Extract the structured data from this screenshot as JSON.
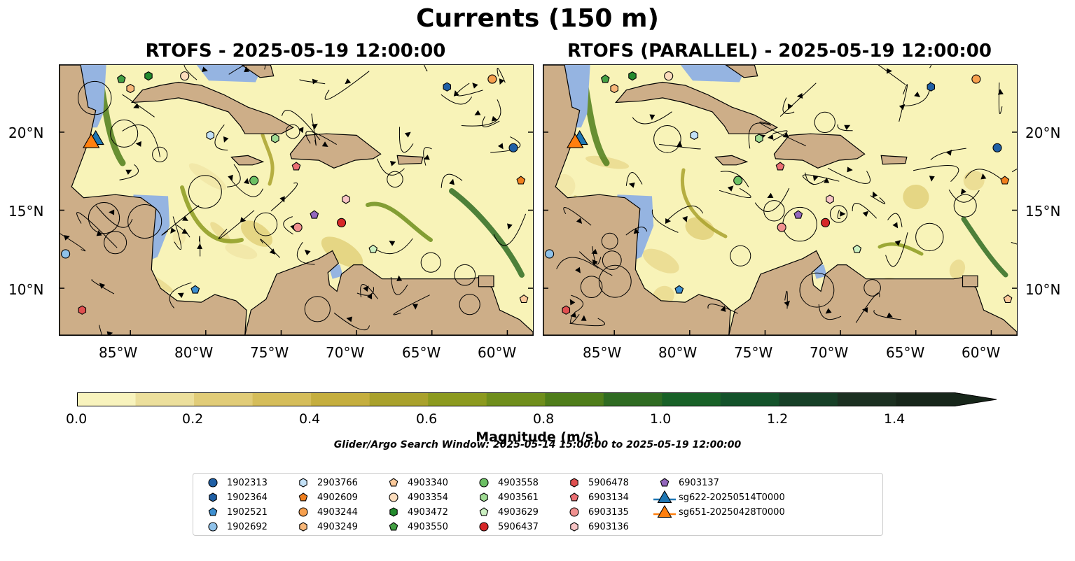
{
  "figure": {
    "title": "Currents (150 m)",
    "panels": [
      {
        "title": "RTOFS - 2025-05-19 12:00:00"
      },
      {
        "title": "RTOFS (PARALLEL) - 2025-05-19 12:00:00"
      }
    ],
    "lon_ticks": [
      "85°W",
      "80°W",
      "75°W",
      "70°W",
      "65°W",
      "60°W"
    ],
    "lat_ticks": [
      "20°N",
      "15°N",
      "10°N"
    ],
    "extent": {
      "lon": [
        -89.7,
        -58.3
      ],
      "lat": [
        7.0,
        24.3
      ]
    },
    "colors": {
      "land": "#cdae88",
      "shallow_water": "#95b4e1",
      "slow_current": "#f8f3b8",
      "fast_current": "#1e3a12"
    }
  },
  "colorbar": {
    "label": "Magnitude (m/s)",
    "ticks": [
      "0.0",
      "0.2",
      "0.4",
      "0.6",
      "0.8",
      "1.0",
      "1.2",
      "1.4"
    ],
    "range": [
      0.0,
      1.5
    ],
    "extend": "max",
    "colors": [
      "#f8f3bd",
      "#ecdf9c",
      "#e1cc78",
      "#d5bd5a",
      "#c5ae3e",
      "#a9a12c",
      "#8c9a1f",
      "#6f8e1c",
      "#4f7d1a",
      "#2f6b22",
      "#186127",
      "#13522a",
      "#174027",
      "#1c3021",
      "#17261a"
    ]
  },
  "search_window": "Glider/Argo Search Window: 2025-05-14 15:00:00 to 2025-05-19 12:00:00",
  "legend": [
    {
      "label": "1902313",
      "marker": "circle",
      "color": "#1f5fa5"
    },
    {
      "label": "1902364",
      "marker": "hexagon",
      "color": "#1f5fa5"
    },
    {
      "label": "1902521",
      "marker": "pentagon",
      "color": "#3d8fd0"
    },
    {
      "label": "1902692",
      "marker": "circle",
      "color": "#8fc2ea"
    },
    {
      "label": "2903766",
      "marker": "hexagon",
      "color": "#c3e1f7"
    },
    {
      "label": "4902609",
      "marker": "pentagon",
      "color": "#f07f1e"
    },
    {
      "label": "4903244",
      "marker": "circle",
      "color": "#f7a04e"
    },
    {
      "label": "4903249",
      "marker": "hexagon",
      "color": "#f8b779"
    },
    {
      "label": "4903340",
      "marker": "pentagon",
      "color": "#fbc99a"
    },
    {
      "label": "4903354",
      "marker": "circle",
      "color": "#fcdcbc"
    },
    {
      "label": "4903472",
      "marker": "hexagon",
      "color": "#238b2d"
    },
    {
      "label": "4903550",
      "marker": "pentagon",
      "color": "#43a043"
    },
    {
      "label": "4903558",
      "marker": "circle",
      "color": "#6cc064"
    },
    {
      "label": "4903561",
      "marker": "hexagon",
      "color": "#9fdb93"
    },
    {
      "label": "4903629",
      "marker": "pentagon",
      "color": "#cbf0c1"
    },
    {
      "label": "5906437",
      "marker": "circle",
      "color": "#d62728"
    },
    {
      "label": "5906478",
      "marker": "hexagon",
      "color": "#e05050"
    },
    {
      "label": "6903134",
      "marker": "pentagon",
      "color": "#eb6f73"
    },
    {
      "label": "6903135",
      "marker": "circle",
      "color": "#f0908f"
    },
    {
      "label": "6903136",
      "marker": "hexagon",
      "color": "#f8c4c5"
    },
    {
      "label": "6903137",
      "marker": "pentagon",
      "color": "#9467bd"
    },
    {
      "label": "sg622-20250514T0000",
      "marker": "triangle",
      "color": "#1f77b4"
    },
    {
      "label": "sg651-20250428T0000",
      "marker": "triangle",
      "color": "#ff7f0e"
    }
  ],
  "floats_right_lon_lat": [
    {
      "id": "1902313",
      "pos": [
        -59.6,
        19.0
      ]
    },
    {
      "id": "1902364",
      "pos": [
        -64.0,
        22.9
      ]
    },
    {
      "id": "1902521",
      "pos": [
        -80.7,
        9.9
      ]
    },
    {
      "id": "1902692",
      "pos": [
        -89.3,
        12.2
      ]
    },
    {
      "id": "2903766",
      "pos": [
        -79.7,
        19.8
      ]
    },
    {
      "id": "4902609",
      "pos": [
        -59.1,
        16.9
      ]
    },
    {
      "id": "4903244",
      "pos": [
        -61.0,
        23.4
      ]
    },
    {
      "id": "4903249",
      "pos": [
        -85.0,
        22.8
      ]
    },
    {
      "id": "4903340",
      "pos": [
        -58.9,
        9.3
      ]
    },
    {
      "id": "4903354",
      "pos": [
        -81.4,
        23.6
      ]
    },
    {
      "id": "4903472",
      "pos": [
        -83.8,
        23.6
      ]
    },
    {
      "id": "4903550",
      "pos": [
        -85.6,
        23.4
      ]
    },
    {
      "id": "4903558",
      "pos": [
        -76.8,
        16.9
      ]
    },
    {
      "id": "4903561",
      "pos": [
        -75.4,
        19.6
      ]
    },
    {
      "id": "4903629",
      "pos": [
        -68.9,
        12.5
      ]
    },
    {
      "id": "5906437",
      "pos": [
        -71.0,
        14.2
      ]
    },
    {
      "id": "5906478",
      "pos": [
        -88.2,
        8.6
      ]
    },
    {
      "id": "6903134",
      "pos": [
        -74.0,
        17.8
      ]
    },
    {
      "id": "6903135",
      "pos": [
        -73.9,
        13.9
      ]
    },
    {
      "id": "6903136",
      "pos": [
        -70.7,
        15.7
      ]
    },
    {
      "id": "6903137",
      "pos": [
        -72.8,
        14.7
      ]
    },
    {
      "id": "sg622-20250514T0000",
      "pos": [
        -87.3,
        19.5
      ]
    },
    {
      "id": "sg651-20250428T0000",
      "pos": [
        -87.6,
        19.3
      ]
    }
  ],
  "floats_left_lon_lat": [
    {
      "id": "1902313",
      "pos": [
        -59.6,
        19.0
      ]
    },
    {
      "id": "1902364",
      "pos": [
        -64.0,
        22.9
      ]
    },
    {
      "id": "1902521",
      "pos": [
        -80.7,
        9.9
      ]
    },
    {
      "id": "1902692",
      "pos": [
        -89.3,
        12.2
      ]
    },
    {
      "id": "2903766",
      "pos": [
        -79.7,
        19.8
      ]
    },
    {
      "id": "4902609",
      "pos": [
        -59.1,
        16.9
      ]
    },
    {
      "id": "4903244",
      "pos": [
        -61.0,
        23.4
      ]
    },
    {
      "id": "4903249",
      "pos": [
        -85.0,
        22.8
      ]
    },
    {
      "id": "4903340",
      "pos": [
        -58.9,
        9.3
      ]
    },
    {
      "id": "4903354",
      "pos": [
        -81.4,
        23.6
      ]
    },
    {
      "id": "4903472",
      "pos": [
        -83.8,
        23.6
      ]
    },
    {
      "id": "4903550",
      "pos": [
        -85.6,
        23.4
      ]
    },
    {
      "id": "4903558",
      "pos": [
        -76.8,
        16.9
      ]
    },
    {
      "id": "4903561",
      "pos": [
        -75.4,
        19.6
      ]
    },
    {
      "id": "4903629",
      "pos": [
        -68.9,
        12.5
      ]
    },
    {
      "id": "5906437",
      "pos": [
        -71.0,
        14.2
      ]
    },
    {
      "id": "5906478",
      "pos": [
        -88.2,
        8.6
      ]
    },
    {
      "id": "6903134",
      "pos": [
        -74.0,
        17.8
      ]
    },
    {
      "id": "6903135",
      "pos": [
        -73.9,
        13.9
      ]
    },
    {
      "id": "6903136",
      "pos": [
        -70.7,
        15.7
      ]
    },
    {
      "id": "6903137",
      "pos": [
        -72.8,
        14.7
      ]
    },
    {
      "id": "sg622-20250514T0000",
      "pos": [
        -87.3,
        19.5
      ]
    },
    {
      "id": "sg651-20250428T0000",
      "pos": [
        -87.6,
        19.3
      ]
    }
  ]
}
